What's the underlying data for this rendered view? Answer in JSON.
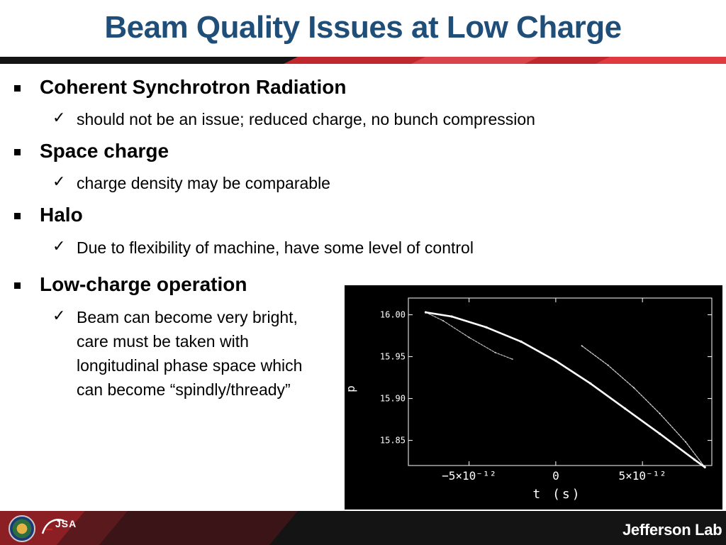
{
  "slide": {
    "title": "Beam Quality Issues at Low Charge",
    "bullets": [
      {
        "label": "Coherent Synchrotron Radiation",
        "subs": [
          "should not be an issue; reduced charge, no bunch compression"
        ]
      },
      {
        "label": "Space charge",
        "subs": [
          "charge density may be comparable"
        ]
      },
      {
        "label": "Halo",
        "subs": [
          "Due to flexibility of machine, have some level of control"
        ]
      },
      {
        "label": "Low-charge operation",
        "subs": [
          "Beam can become very bright,",
          "care must be taken with",
          "longitudinal phase space which",
          "can become “spindly/thready”"
        ]
      }
    ],
    "check_glyph": "✓",
    "bullet_glyph": "square"
  },
  "colors": {
    "title": "#1f4e79",
    "accent_red": "#c0282d",
    "footer_bg": "#1a1a1a",
    "plot_bg": "#000000",
    "plot_fg": "#ffffff"
  },
  "chart_data": {
    "type": "scatter",
    "title": "",
    "xlabel": "t (s)",
    "ylabel": "p",
    "x_ticks": [
      "−5×10⁻¹²",
      "0",
      "5×10⁻¹²"
    ],
    "y_ticks": [
      "16.00",
      "15.95",
      "15.90",
      "15.85"
    ],
    "ylim": [
      15.82,
      16.02
    ],
    "xlim": [
      -8.5e-12,
      9e-12
    ],
    "grid": false,
    "series": [
      {
        "values": [
          [
            -7.5e-12,
            16.003
          ],
          [
            -6e-12,
            15.998
          ],
          [
            -4e-12,
            15.985
          ],
          [
            -2e-12,
            15.968
          ],
          [
            0.0,
            15.945
          ],
          [
            2e-12,
            15.918
          ],
          [
            4e-12,
            15.888
          ],
          [
            6e-12,
            15.858
          ],
          [
            8e-12,
            15.827
          ],
          [
            8.6e-12,
            15.818
          ]
        ]
      },
      {
        "values": [
          [
            -7.5e-12,
            16.003
          ],
          [
            -6.5e-12,
            15.993
          ],
          [
            -5e-12,
            15.973
          ],
          [
            -3.5e-12,
            15.955
          ],
          [
            -2.5e-12,
            15.947
          ]
        ]
      },
      {
        "values": [
          [
            1.5e-12,
            15.963
          ],
          [
            3e-12,
            15.94
          ],
          [
            4.5e-12,
            15.913
          ],
          [
            6e-12,
            15.882
          ],
          [
            7.5e-12,
            15.848
          ],
          [
            8.6e-12,
            15.818
          ]
        ]
      }
    ]
  },
  "footer": {
    "logo_left_text": "JSA",
    "logo_right_text": "Jefferson Lab"
  }
}
